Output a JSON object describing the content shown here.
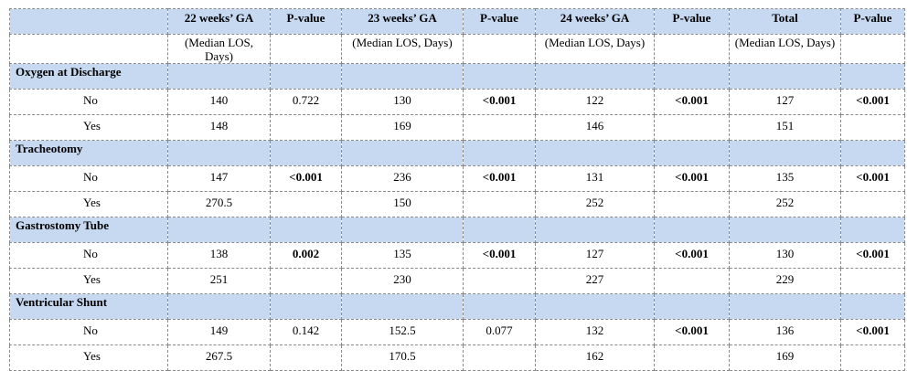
{
  "header": [
    "",
    "22 weeks’ GA",
    "P-value",
    "23 weeks’ GA",
    "P-value",
    "24 weeks’ GA",
    "P-value",
    "Total",
    "P-value"
  ],
  "subheader": [
    "",
    "(Median LOS, Days)",
    "",
    "(Median LOS, Days)",
    "",
    "(Median LOS, Days)",
    "",
    "(Median LOS, Days)",
    ""
  ],
  "sections": [
    {
      "title": "Oxygen at Discharge",
      "rows": [
        {
          "label": "No",
          "cells": [
            "140",
            "0.722",
            "130",
            "<0.001",
            "122",
            "<0.001",
            "127",
            "<0.001"
          ]
        },
        {
          "label": "Yes",
          "cells": [
            "148",
            "",
            "169",
            "",
            "146",
            "",
            "151",
            ""
          ]
        }
      ]
    },
    {
      "title": "Tracheotomy",
      "rows": [
        {
          "label": "No",
          "cells": [
            "147",
            "<0.001",
            "236",
            "<0.001",
            "131",
            "<0.001",
            "135",
            "<0.001"
          ]
        },
        {
          "label": "Yes",
          "cells": [
            "270.5",
            "",
            "150",
            "",
            "252",
            "",
            "252",
            ""
          ]
        }
      ]
    },
    {
      "title": "Gastrostomy Tube",
      "rows": [
        {
          "label": "No",
          "cells": [
            "138",
            "0.002",
            "135",
            "<0.001",
            "127",
            "<0.001",
            "130",
            "<0.001"
          ]
        },
        {
          "label": "Yes",
          "cells": [
            "251",
            "",
            "230",
            "",
            "227",
            "",
            "229",
            ""
          ]
        }
      ]
    },
    {
      "title": "Ventricular Shunt",
      "rows": [
        {
          "label": "No",
          "cells": [
            "149",
            "0.142",
            "152.5",
            "0.077",
            "132",
            "<0.001",
            "136",
            "<0.001"
          ]
        },
        {
          "label": "Yes",
          "cells": [
            "267.5",
            "",
            "170.5",
            "",
            "162",
            "",
            "169",
            ""
          ]
        }
      ]
    }
  ],
  "bold_pvalues": [
    "<0.001",
    "0.002"
  ]
}
